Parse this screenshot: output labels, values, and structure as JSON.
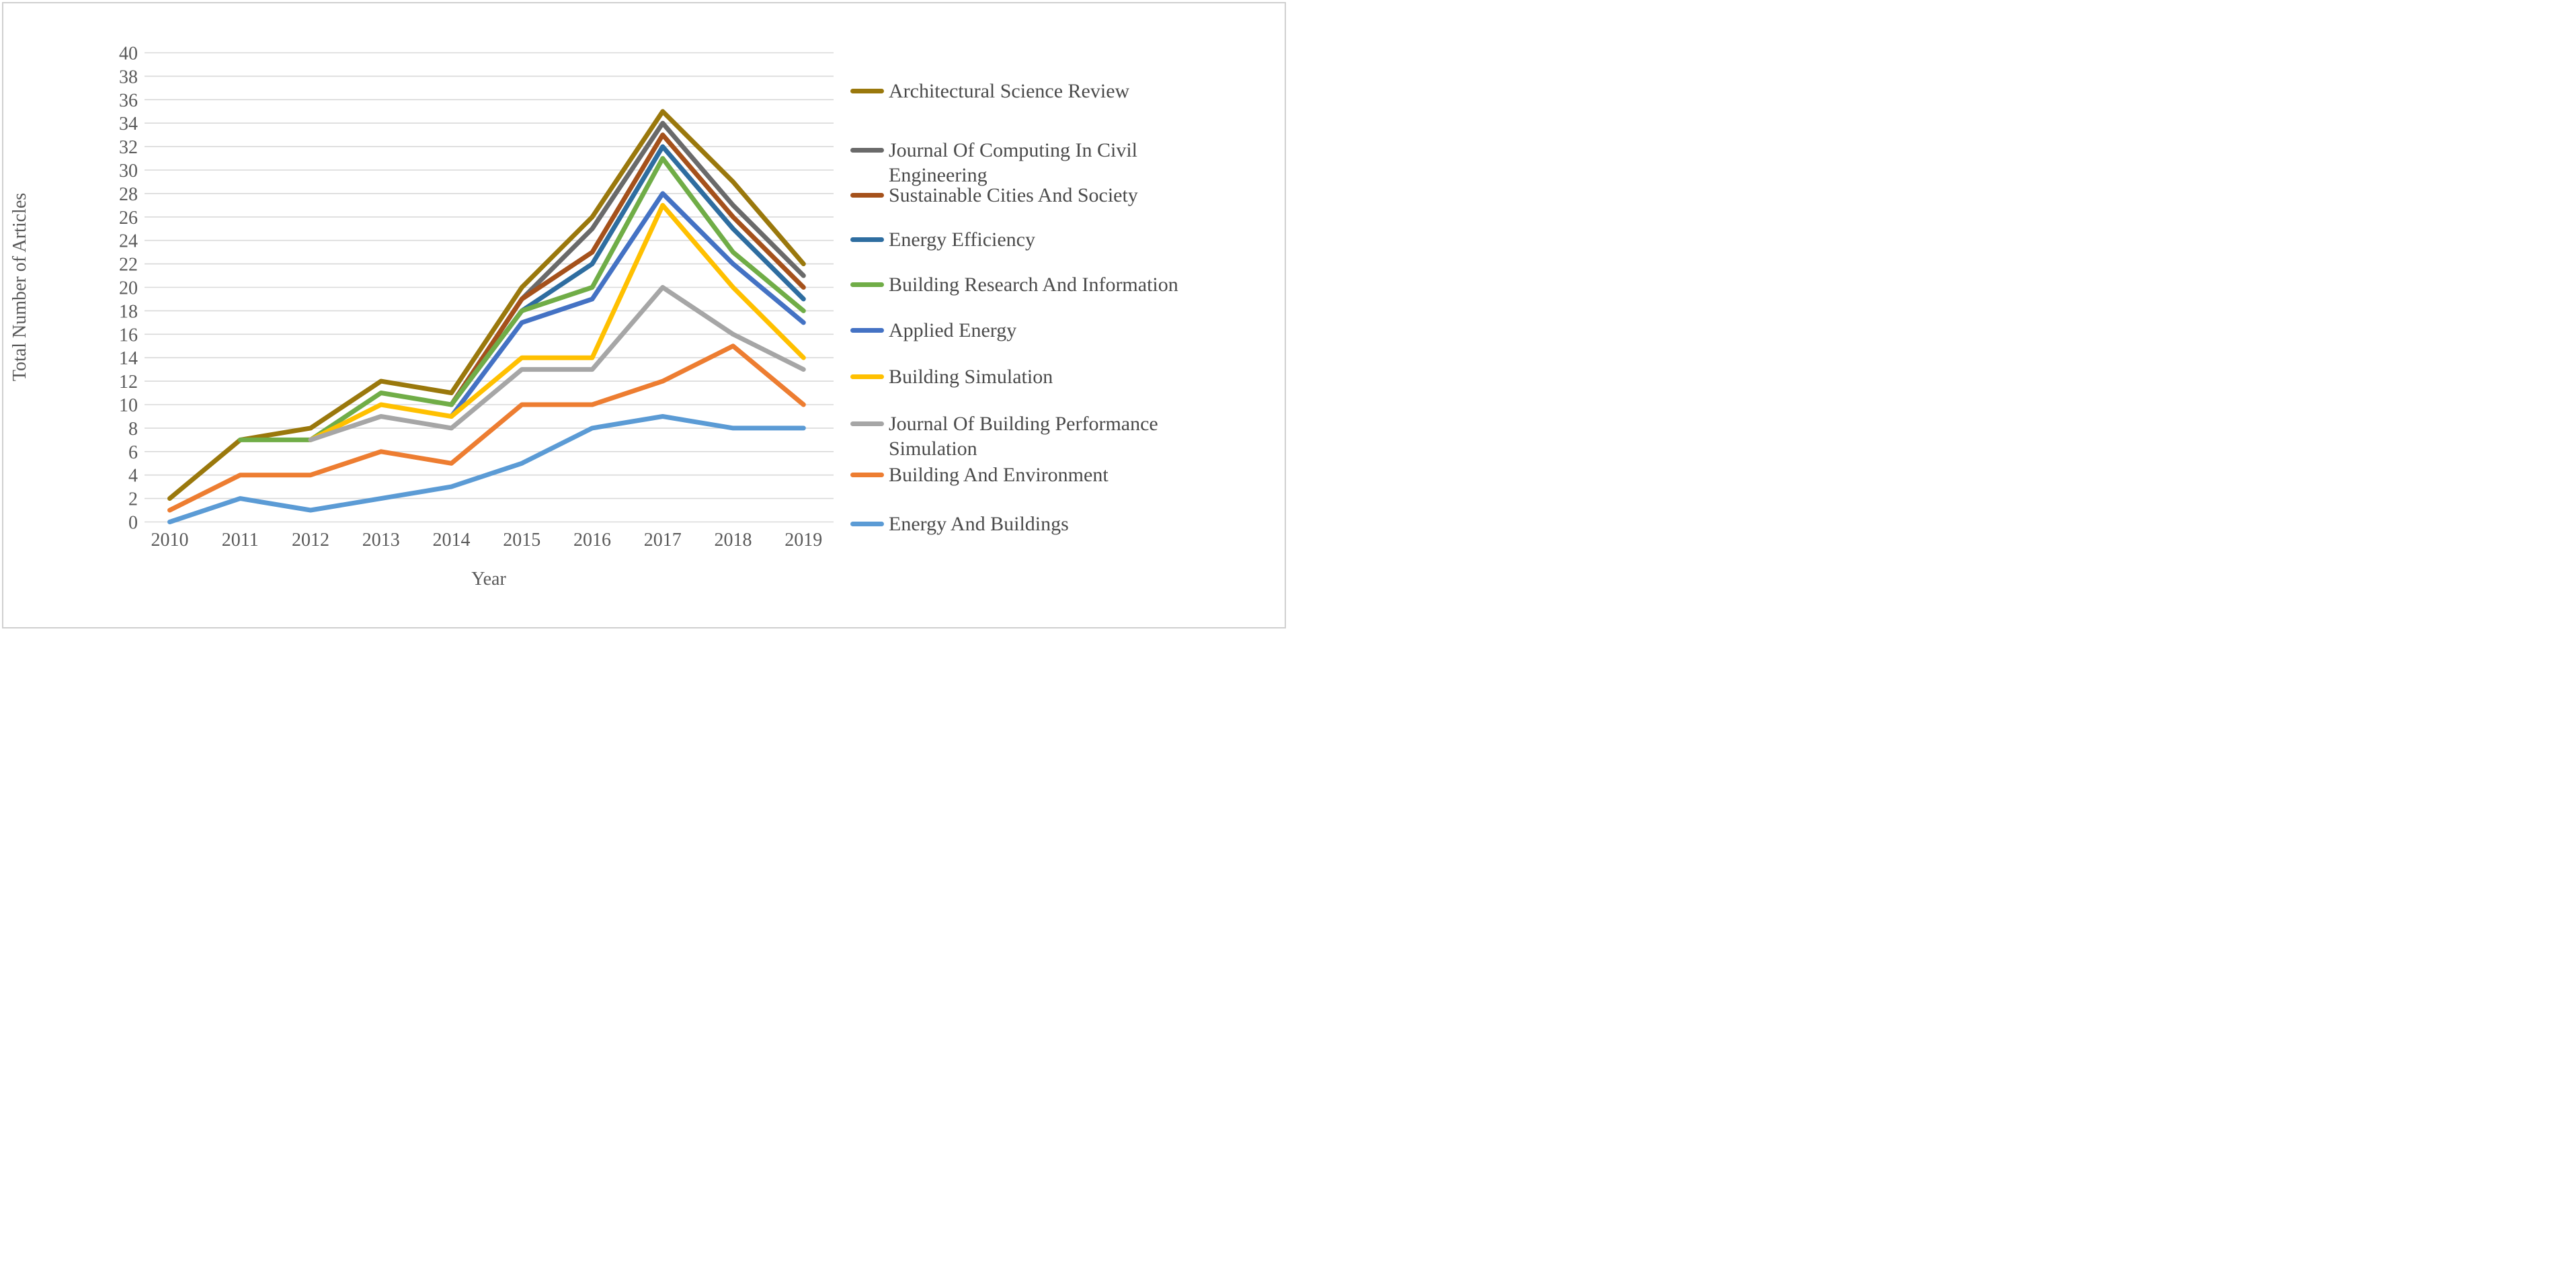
{
  "chart_data": {
    "type": "line",
    "title": "",
    "xlabel": "Year",
    "ylabel": "Total Number of Articles",
    "categories": [
      "2010",
      "2011",
      "2012",
      "2013",
      "2014",
      "2015",
      "2016",
      "2017",
      "2018",
      "2019"
    ],
    "ylim": [
      0,
      40
    ],
    "ytick_step": 2,
    "grid": true,
    "legend_position": "right",
    "gridline_color": "#d9d9d9",
    "tick_label_color": "#595959",
    "series": [
      {
        "name": "Architectural Science Review",
        "color": "#9A780C",
        "values": [
          2,
          7,
          8,
          12,
          11,
          20,
          26,
          35,
          29,
          22
        ]
      },
      {
        "name": "Journal Of Computing In Civil Engineering",
        "color": "#6A6A6A",
        "values": [
          null,
          null,
          null,
          null,
          10,
          19,
          25,
          34,
          27,
          21
        ]
      },
      {
        "name": "Sustainable Cities And Society",
        "color": "#A5511B",
        "values": [
          null,
          null,
          null,
          null,
          10,
          19,
          23,
          33,
          26,
          20
        ]
      },
      {
        "name": "Energy Efficiency",
        "color": "#2E6DA0",
        "values": [
          null,
          null,
          null,
          null,
          10,
          18,
          22,
          32,
          25,
          19
        ]
      },
      {
        "name": "Building Research And Information",
        "color": "#70AD47",
        "values": [
          null,
          7,
          7,
          11,
          10,
          18,
          20,
          31,
          23,
          18
        ]
      },
      {
        "name": "Applied Energy",
        "color": "#4472C4",
        "values": [
          null,
          null,
          null,
          null,
          9,
          17,
          19,
          28,
          22,
          17
        ]
      },
      {
        "name": "Building Simulation",
        "color": "#FFC000",
        "values": [
          null,
          null,
          7,
          10,
          9,
          14,
          14,
          27,
          20,
          14
        ]
      },
      {
        "name": "Journal Of Building Performance Simulation",
        "color": "#A6A6A6",
        "values": [
          null,
          null,
          7,
          9,
          8,
          13,
          13,
          20,
          16,
          13
        ]
      },
      {
        "name": "Building And Environment",
        "color": "#ED7D31",
        "values": [
          1,
          4,
          4,
          6,
          5,
          10,
          10,
          12,
          15,
          10
        ]
      },
      {
        "name": "Energy And Buildings",
        "color": "#5B9BD5",
        "values": [
          0,
          2,
          1,
          2,
          3,
          5,
          8,
          9,
          8,
          8
        ]
      }
    ]
  }
}
